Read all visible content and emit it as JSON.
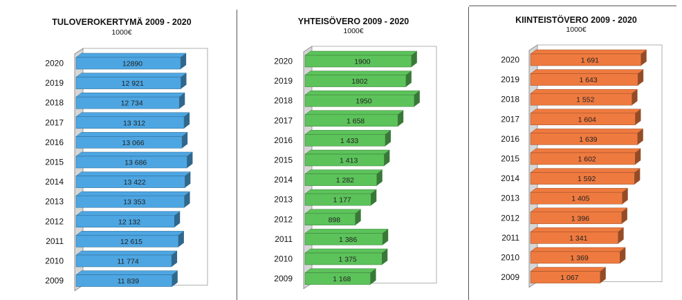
{
  "chart_data": [
    {
      "type": "bar",
      "title": "TULOVEROKERTYMÄ 2009 - 2020",
      "subtitle": "1000€",
      "categories": [
        "2020",
        "2019",
        "2018",
        "2017",
        "2016",
        "2015",
        "2014",
        "2013",
        "2012",
        "2011",
        "2010",
        "2009"
      ],
      "values": [
        12890,
        12921,
        12734,
        13312,
        13066,
        13686,
        13422,
        13353,
        12132,
        12615,
        11774,
        11839
      ],
      "value_labels": [
        "12890",
        "12 921",
        "12 734",
        "13 312",
        "13 066",
        "13 686",
        "13 422",
        "13 353",
        "12 132",
        "12 615",
        "11 774",
        "11 839"
      ],
      "color": "#4da6e2",
      "xlim": [
        0,
        14500
      ]
    },
    {
      "type": "bar",
      "title": "YHTEISÖVERO 2009 - 2020",
      "subtitle": "1000€",
      "categories": [
        "2020",
        "2019",
        "2018",
        "2017",
        "2016",
        "2015",
        "2014",
        "2013",
        "2012",
        "2011",
        "2010",
        "2009"
      ],
      "values": [
        1900,
        1802,
        1950,
        1658,
        1433,
        1413,
        1282,
        1177,
        898,
        1386,
        1375,
        1168
      ],
      "value_labels": [
        "1900",
        "1802",
        "1950",
        "1 658",
        "1 433",
        "1 413",
        "1 282",
        "1 177",
        "898",
        "1 386",
        "1 375",
        "1 168"
      ],
      "color": "#5cc35a",
      "xlim": [
        0,
        2100
      ]
    },
    {
      "type": "bar",
      "title": "KIINTEISTÖVERO 2009 - 2020",
      "subtitle": "1000€",
      "categories": [
        "2020",
        "2019",
        "2018",
        "2017",
        "2016",
        "2015",
        "2014",
        "2013",
        "2012",
        "2011",
        "2010",
        "2009"
      ],
      "values": [
        1691,
        1643,
        1552,
        1604,
        1639,
        1602,
        1592,
        1405,
        1396,
        1341,
        1369,
        1067
      ],
      "value_labels": [
        "1 691",
        "1 643",
        "1 552",
        "1 604",
        "1 639",
        "1 602",
        "1 592",
        "1 405",
        "1 396",
        "1 341",
        "1 369",
        "1 067"
      ],
      "color": "#ef7a3f",
      "xlim": [
        0,
        1800
      ]
    }
  ]
}
